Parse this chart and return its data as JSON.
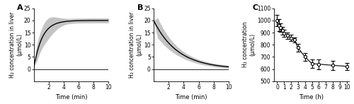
{
  "panel_A": {
    "label": "A",
    "xlabel": "Time (min)",
    "ylabel": "H₂ concentration in liver\n(μmol/L)",
    "xlim": [
      0,
      10
    ],
    "ylim": [
      -5,
      25
    ],
    "xticks": [
      2,
      4,
      6,
      8,
      10
    ],
    "yticks": [
      0,
      5,
      10,
      15,
      20,
      25
    ],
    "line_color": "#000000",
    "fill_color": "#b0b0b0"
  },
  "panel_B": {
    "label": "B",
    "xlabel": "Time (min)",
    "ylabel": "H₂ concentration in liver\n(μmol/L)",
    "xlim": [
      0,
      10
    ],
    "ylim": [
      -5,
      25
    ],
    "xticks": [
      2,
      4,
      6,
      8,
      10
    ],
    "yticks": [
      0,
      5,
      10,
      15,
      20,
      25
    ],
    "line_color": "#000000",
    "fill_color": "#b0b0b0"
  },
  "panel_C": {
    "label": "C",
    "xlabel": "Time (h)",
    "ylabel": "H₂ concentration\n(μmol/L)",
    "xlim": [
      -0.5,
      10.3
    ],
    "ylim": [
      500,
      1100
    ],
    "xticks": [
      0,
      1,
      2,
      3,
      4,
      5,
      6,
      7,
      8,
      9,
      10
    ],
    "yticks": [
      500,
      600,
      700,
      800,
      900,
      1000,
      1100
    ],
    "x_data": [
      0,
      0.25,
      0.5,
      0.75,
      1.0,
      1.5,
      2.0,
      2.5,
      3.0,
      4.0,
      5.0,
      6.0,
      8.0,
      10.0
    ],
    "y_data": [
      1000,
      960,
      940,
      915,
      895,
      875,
      855,
      840,
      775,
      700,
      645,
      640,
      630,
      622
    ],
    "y_err": [
      45,
      50,
      35,
      30,
      28,
      25,
      25,
      22,
      30,
      32,
      35,
      40,
      38,
      28
    ],
    "line_color": "#000000",
    "marker": "o",
    "marker_size": 3.0
  }
}
